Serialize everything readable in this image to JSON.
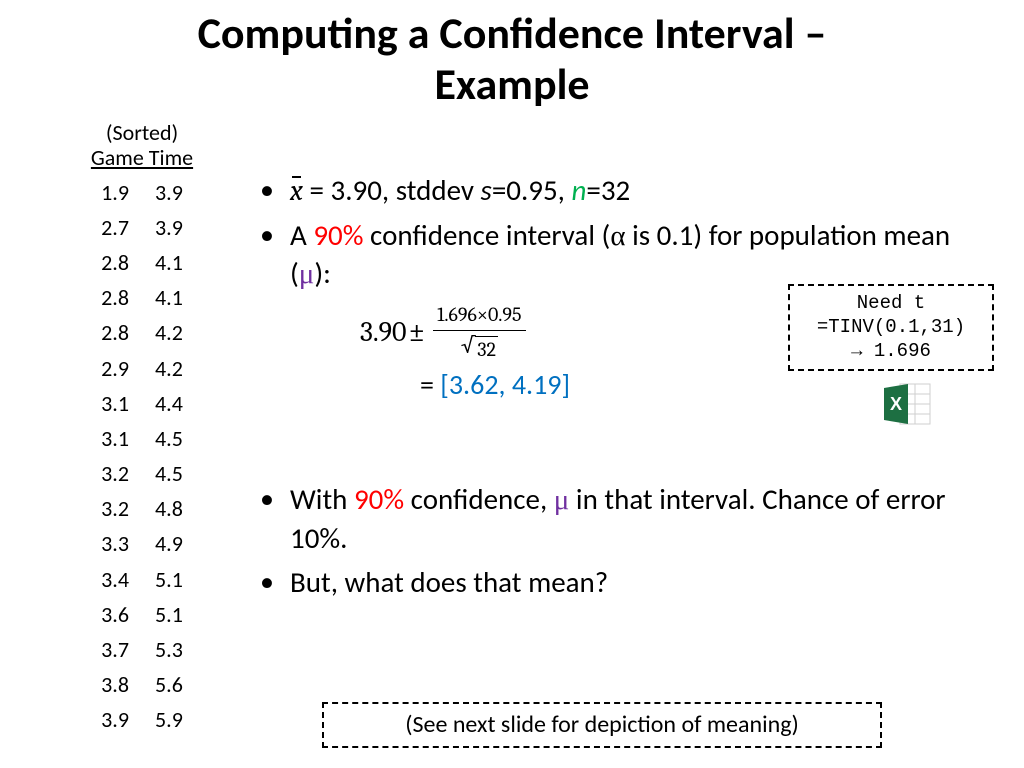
{
  "title": {
    "line1": "Computing a Confidence Interval –",
    "line2": "Example"
  },
  "table": {
    "header_line1": "(Sorted)",
    "header_line2": "Game Time",
    "col1": [
      "1.9",
      "2.7",
      "2.8",
      "2.8",
      "2.8",
      "2.9",
      "3.1",
      "3.1",
      "3.2",
      "3.2",
      "3.3",
      "3.4",
      "3.6",
      "3.7",
      "3.8",
      "3.9"
    ],
    "col2": [
      "3.9",
      "3.9",
      "4.1",
      "4.1",
      "4.2",
      "4.2",
      "4.4",
      "4.5",
      "4.5",
      "4.8",
      "4.9",
      "5.1",
      "5.1",
      "5.3",
      "5.6",
      "5.9"
    ]
  },
  "bullets": {
    "b1_xbar": "x",
    "b1_a": " = 3.90, stddev ",
    "b1_s": "s",
    "b1_b": "=0.95, ",
    "b1_n": "n",
    "b1_c": "=32",
    "b2_a": "A ",
    "b2_pct": "90%",
    "b2_b": " confidence interval (",
    "b2_alpha": "α",
    "b2_c": " is 0.1) for population mean (",
    "b2_mu": "μ",
    "b2_d": "):",
    "b3_a": "With ",
    "b3_pct": "90%",
    "b3_b": " confidence, ",
    "b3_mu": "μ",
    "b3_c": " in that interval.  Chance of error 10%.",
    "b4": "But, what does that mean?"
  },
  "formula": {
    "base": "3.90 ",
    "pm": "±",
    "numerator": "1.696×0.95",
    "denom_arg": "32",
    "eq": "= ",
    "interval": "[3.62, 4.19]"
  },
  "note_t": {
    "l1": "Need t",
    "l2": "=TINV(0.1,31)",
    "l3": "→ 1.696"
  },
  "note_bottom": {
    "text": "(See next slide for depiction of meaning)"
  },
  "colors": {
    "green": "#00b050",
    "red": "#ff0000",
    "purple": "#7030a0",
    "blue": "#0070c0",
    "excel_dark": "#1d6f42",
    "excel_light": "#21a366"
  }
}
